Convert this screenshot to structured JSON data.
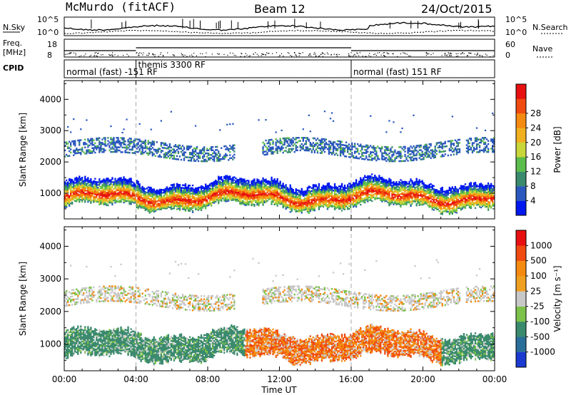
{
  "header": {
    "station": "McMurdo (fitACF)",
    "beam": "Beam 12",
    "date": "24/Oct/2015"
  },
  "strip": {
    "nsky_label": "N.Sky",
    "nsearch_label": "N.Search",
    "noise_ticks": [
      "10^5",
      "10^0"
    ],
    "freq_label": "Freq.",
    "freq_unit": "[MHz]",
    "freq_ticks": [
      "18",
      "8"
    ],
    "nave_label": "Nave",
    "nave_ticks": [
      "60",
      "0"
    ],
    "cpid_label": "CPID",
    "modes": [
      {
        "label": "normal (fast) -151 RF",
        "start": 0.0
      },
      {
        "label": "themis 3300 RF",
        "start": 4.0
      },
      {
        "label": "normal (fast) 151 RF",
        "start": 16.0
      }
    ]
  },
  "chart_data": [
    {
      "type": "heatmap",
      "name": "power",
      "ylabel": "Slant Range [km]",
      "ylim": [
        180,
        4600
      ],
      "yticks": [
        1000,
        2000,
        3000,
        4000
      ],
      "xlim": [
        0,
        24
      ],
      "xticks": [
        "00:00",
        "04:00",
        "08:00",
        "12:00",
        "16:00",
        "20:00",
        "00:00"
      ],
      "colorbar": {
        "label": "Power [dB]",
        "ticks": [
          "4",
          "8",
          "12",
          "16",
          "20",
          "24",
          "28"
        ],
        "colors": [
          "#0018f0",
          "#2b58bf",
          "#3a8a6e",
          "#5bbd4b",
          "#c8d63a",
          "#f0b020",
          "#f58a10",
          "#f04a10",
          "#e81010"
        ]
      }
    },
    {
      "type": "heatmap",
      "name": "velocity",
      "ylabel": "Slant Range [km]",
      "ylim": [
        180,
        4600
      ],
      "yticks": [
        1000,
        2000,
        3000,
        4000
      ],
      "xlim": [
        0,
        24
      ],
      "xticks": [
        "00:00",
        "04:00",
        "08:00",
        "12:00",
        "16:00",
        "20:00",
        "00:00"
      ],
      "xlabel": "Time UT",
      "colorbar": {
        "label": "Velocity [m s⁻¹]",
        "ticks": [
          "1000",
          "500",
          "100",
          "25",
          "-25",
          "-100",
          "-500",
          "-1000"
        ],
        "colors": [
          "#1a3ad0",
          "#2a6f9a",
          "#3a8a6e",
          "#7cc24a",
          "#c8c8c8",
          "#f0a020",
          "#f58a10",
          "#f04a10",
          "#e81010"
        ]
      }
    }
  ]
}
